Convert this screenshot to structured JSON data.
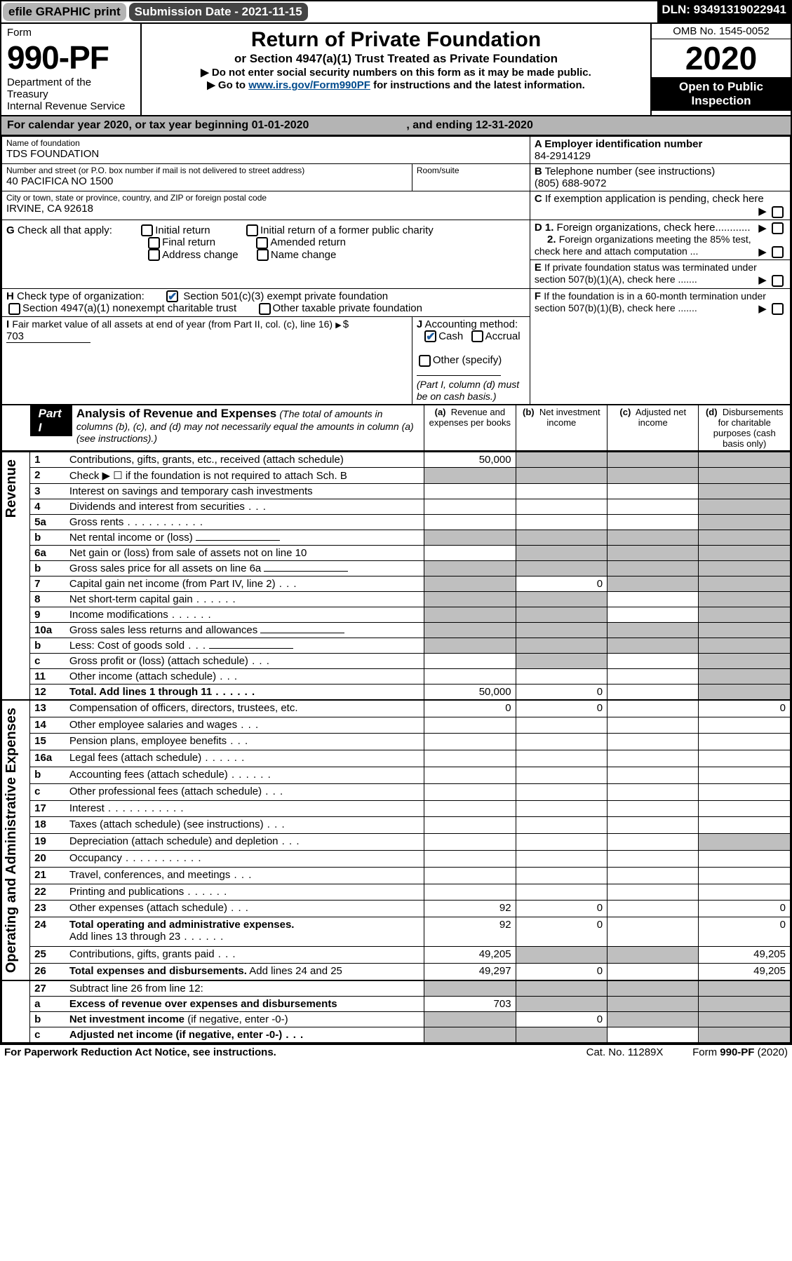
{
  "topbar": {
    "efile": "efile GRAPHIC print",
    "subdate_label": "Submission Date - 2021-11-15",
    "dln": "DLN: 93491319022941"
  },
  "header": {
    "form_word": "Form",
    "form_number": "990-PF",
    "dept": "Department of the Treasury",
    "irs": "Internal Revenue Service",
    "title": "Return of Private Foundation",
    "subtitle": "or Section 4947(a)(1) Trust Treated as Private Foundation",
    "note1": "▶ Do not enter social security numbers on this form as it may be made public.",
    "note2_pre": "▶ Go to ",
    "note2_link": "www.irs.gov/Form990PF",
    "note2_post": " for instructions and the latest information.",
    "omb": "OMB No. 1545-0052",
    "year": "2020",
    "open": "Open to Public Inspection"
  },
  "calbar": {
    "text_left": "For calendar year 2020, or tax year beginning 01-01-2020",
    "text_right": ", and ending 12-31-2020"
  },
  "entity": {
    "name_label": "Name of foundation",
    "name": "TDS FOUNDATION",
    "addr_label": "Number and street (or P.O. box number if mail is not delivered to street address)",
    "addr": "40 PACIFICA NO 1500",
    "room_label": "Room/suite",
    "city_label": "City or town, state or province, country, and ZIP or foreign postal code",
    "city": "IRVINE, CA  92618",
    "a_label": "A Employer identification number",
    "a_val": "84-2914129",
    "b_label": "B",
    "b_text": "Telephone number (see instructions)",
    "b_val": "(805) 688-9072",
    "c_label": "C",
    "c_text": "If exemption application is pending, check here",
    "g_label": "G",
    "g_text": "Check all that apply:",
    "g_opts": [
      "Initial return",
      "Final return",
      "Address change",
      "Initial return of a former public charity",
      "Amended return",
      "Name change"
    ],
    "d1": "D 1.",
    "d1_text": "Foreign organizations, check here............",
    "d2": "2.",
    "d2_text": "Foreign organizations meeting the 85% test, check here and attach computation ...",
    "e_label": "E",
    "e_text": "If private foundation status was terminated under section 507(b)(1)(A), check here .......",
    "h_label": "H",
    "h_text": "Check type of organization:",
    "h1": "Section 501(c)(3) exempt private foundation",
    "h2": "Section 4947(a)(1) nonexempt charitable trust",
    "h3": "Other taxable private foundation",
    "i_label": "I",
    "i_text": "Fair market value of all assets at end of year (from Part II, col. (c), line 16)",
    "i_val": "703",
    "j_label": "J",
    "j_text": "Accounting method:",
    "j_cash": "Cash",
    "j_accrual": "Accrual",
    "j_other": "Other (specify)",
    "j_note": "(Part I, column (d) must be on cash basis.)",
    "f_label": "F",
    "f_text": "If the foundation is in a 60-month termination under section 507(b)(1)(B), check here ......."
  },
  "part1": {
    "label": "Part I",
    "title": "Analysis of Revenue and Expenses",
    "title_note": " (The total of amounts in columns (b), (c), and (d) may not necessarily equal the amounts in column (a) (see instructions).)",
    "cols": {
      "a": "(a)",
      "a_txt": "Revenue and expenses per books",
      "b": "(b)",
      "b_txt": "Net investment income",
      "c": "(c)",
      "c_txt": "Adjusted net income",
      "d": "(d)",
      "d_txt": "Disbursements for charitable purposes (cash basis only)"
    }
  },
  "sections": {
    "revenue": "Revenue",
    "expenses": "Operating and Administrative Expenses"
  },
  "rows": [
    {
      "n": "1",
      "t": "Contributions, gifts, grants, etc., received (attach schedule)",
      "a": "50,000",
      "bshade": true,
      "cshade": true,
      "dshade": true
    },
    {
      "n": "2",
      "t": "Check ▶ ☐ if the foundation is not required to attach Sch. B",
      "tmini": true,
      "ashade": true,
      "bshade": true,
      "cshade": true,
      "dshade": true
    },
    {
      "n": "3",
      "t": "Interest on savings and temporary cash investments",
      "dshade": true
    },
    {
      "n": "4",
      "t": "Dividends and interest from securities",
      "dshade": true,
      "dotclass": "dotsss"
    },
    {
      "n": "5a",
      "t": "Gross rents",
      "dshade": true,
      "dotclass": "dots"
    },
    {
      "n": "b",
      "t": "Net rental income or (loss)",
      "ashade": true,
      "bshade": true,
      "cshade": true,
      "dshade": true,
      "lineafter": true
    },
    {
      "n": "6a",
      "t": "Net gain or (loss) from sale of assets not on line 10",
      "bshade": true,
      "cshade": true,
      "dshade": true
    },
    {
      "n": "b",
      "t": "Gross sales price for all assets on line 6a",
      "ashade": true,
      "bshade": true,
      "cshade": true,
      "dshade": true,
      "lineafter": true
    },
    {
      "n": "7",
      "t": "Capital gain net income (from Part IV, line 2)",
      "ashade": true,
      "b": "0",
      "cshade": true,
      "dshade": true,
      "dotclass": "dotsss"
    },
    {
      "n": "8",
      "t": "Net short-term capital gain",
      "ashade": true,
      "bshade": true,
      "dshade": true,
      "dotclass": "dotss"
    },
    {
      "n": "9",
      "t": "Income modifications",
      "ashade": true,
      "bshade": true,
      "dshade": true,
      "dotclass": "dotss"
    },
    {
      "n": "10a",
      "t": "Gross sales less returns and allowances",
      "ashade": true,
      "bshade": true,
      "cshade": true,
      "dshade": true,
      "lineafter": true
    },
    {
      "n": "b",
      "t": "Less: Cost of goods sold",
      "ashade": true,
      "bshade": true,
      "cshade": true,
      "dshade": true,
      "dotclass": "dotsss",
      "lineafter": true
    },
    {
      "n": "c",
      "t": "Gross profit or (loss) (attach schedule)",
      "bshade": true,
      "dshade": true,
      "dotclass": "dotsss"
    },
    {
      "n": "11",
      "t": "Other income (attach schedule)",
      "dshade": true,
      "dotclass": "dotsss"
    },
    {
      "n": "12",
      "t": "Total. Add lines 1 through 11",
      "bold": true,
      "a": "50,000",
      "b": "0",
      "dshade": true,
      "dotclass": "dotss"
    }
  ],
  "exprows": [
    {
      "n": "13",
      "t": "Compensation of officers, directors, trustees, etc.",
      "a": "0",
      "b": "0",
      "d": "0"
    },
    {
      "n": "14",
      "t": "Other employee salaries and wages",
      "dotclass": "dotsss"
    },
    {
      "n": "15",
      "t": "Pension plans, employee benefits",
      "dotclass": "dotsss"
    },
    {
      "n": "16a",
      "t": "Legal fees (attach schedule)",
      "dotclass": "dotss"
    },
    {
      "n": "b",
      "t": "Accounting fees (attach schedule)",
      "dotclass": "dotss"
    },
    {
      "n": "c",
      "t": "Other professional fees (attach schedule)",
      "dotclass": "dotsss"
    },
    {
      "n": "17",
      "t": "Interest",
      "dotclass": "dots"
    },
    {
      "n": "18",
      "t": "Taxes (attach schedule) (see instructions)",
      "dotclass": "dotsss"
    },
    {
      "n": "19",
      "t": "Depreciation (attach schedule) and depletion",
      "dshade": true,
      "dotclass": "dotsss"
    },
    {
      "n": "20",
      "t": "Occupancy",
      "dotclass": "dots"
    },
    {
      "n": "21",
      "t": "Travel, conferences, and meetings",
      "dotclass": "dotsss"
    },
    {
      "n": "22",
      "t": "Printing and publications",
      "dotclass": "dotss"
    },
    {
      "n": "23",
      "t": "Other expenses (attach schedule)",
      "a": "92",
      "b": "0",
      "d": "0",
      "dotclass": "dotsss"
    },
    {
      "n": "24",
      "t": "Total operating and administrative expenses.",
      "bold": true,
      "sub": "Add lines 13 through 23",
      "a": "92",
      "b": "0",
      "d": "0",
      "dotclass": "dotss"
    },
    {
      "n": "25",
      "t": "Contributions, gifts, grants paid",
      "a": "49,205",
      "bshade": true,
      "cshade": true,
      "d": "49,205",
      "dotclass": "dotsss"
    },
    {
      "n": "26",
      "t": "Total expenses and disbursements.",
      "bold": true,
      "tafter": " Add lines 24 and 25",
      "a": "49,297",
      "b": "0",
      "d": "49,205"
    }
  ],
  "sumrows": [
    {
      "n": "27",
      "t": "Subtract line 26 from line 12:",
      "ashade": true,
      "bshade": true,
      "cshade": true,
      "dshade": true
    },
    {
      "n": "a",
      "t": "Excess of revenue over expenses and disbursements",
      "bold": true,
      "a": "703",
      "bshade": true,
      "cshade": true,
      "dshade": true
    },
    {
      "n": "b",
      "t": "Net investment income",
      "bold": true,
      "tafter": " (if negative, enter -0-)",
      "ashade": true,
      "b": "0",
      "cshade": true,
      "dshade": true
    },
    {
      "n": "c",
      "t": "Adjusted net income",
      "bold": true,
      "tafter": " (if negative, enter -0-)",
      "ashade": true,
      "bshade": true,
      "dshade": true,
      "dotclass": "dotsss"
    }
  ],
  "footer": {
    "left": "For Paperwork Reduction Act Notice, see instructions.",
    "mid": "Cat. No. 11289X",
    "right": "Form 990-PF (2020)"
  }
}
